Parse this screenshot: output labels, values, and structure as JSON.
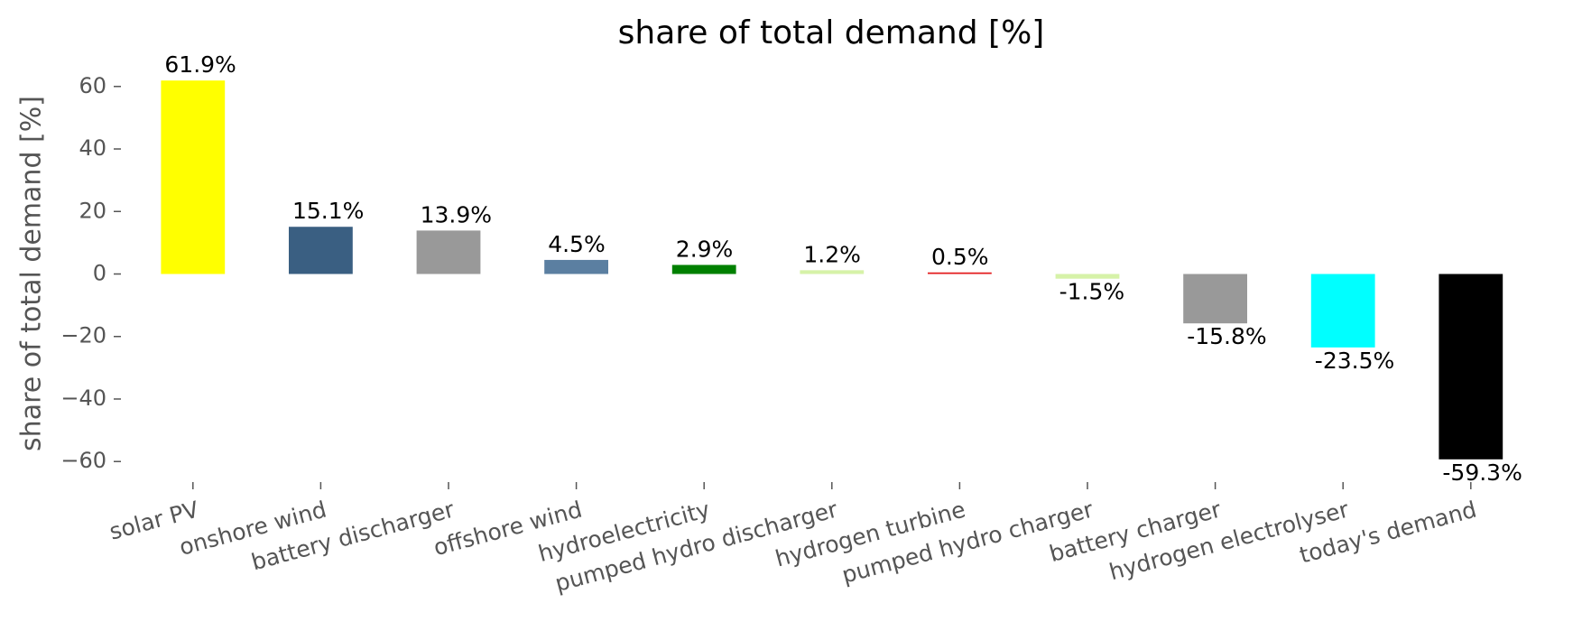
{
  "chart_data": {
    "type": "bar",
    "title": "share of total demand [%]",
    "ylabel": "share of total demand [%]",
    "categories": [
      "solar PV",
      "onshore wind",
      "battery discharger",
      "offshore wind",
      "hydroelectricity",
      "pumped hydro discharger",
      "hydrogen turbine",
      "pumped hydro charger",
      "battery charger",
      "hydrogen electrolyser",
      "today's demand"
    ],
    "values": [
      61.9,
      15.1,
      13.9,
      4.5,
      2.9,
      1.2,
      0.5,
      -1.5,
      -15.8,
      -23.5,
      -59.3
    ],
    "value_labels": [
      "61.9%",
      "15.1%",
      "13.9%",
      "4.5%",
      "2.9%",
      "1.2%",
      "0.5%",
      "-1.5%",
      "-15.8%",
      "-23.5%",
      "-59.3%"
    ],
    "colors": [
      "#ffff00",
      "#3a5f82",
      "#999999",
      "#5b7fa1",
      "#008000",
      "#d6f2a8",
      "#e31a1c",
      "#d6f2a8",
      "#999999",
      "#00ffff",
      "#000000"
    ],
    "ylim": [
      -66,
      66
    ],
    "yticks": [
      {
        "value": -60,
        "label": "−60"
      },
      {
        "value": -40,
        "label": "−40"
      },
      {
        "value": -20,
        "label": "−20"
      },
      0,
      20,
      40,
      60
    ],
    "grid": false
  }
}
